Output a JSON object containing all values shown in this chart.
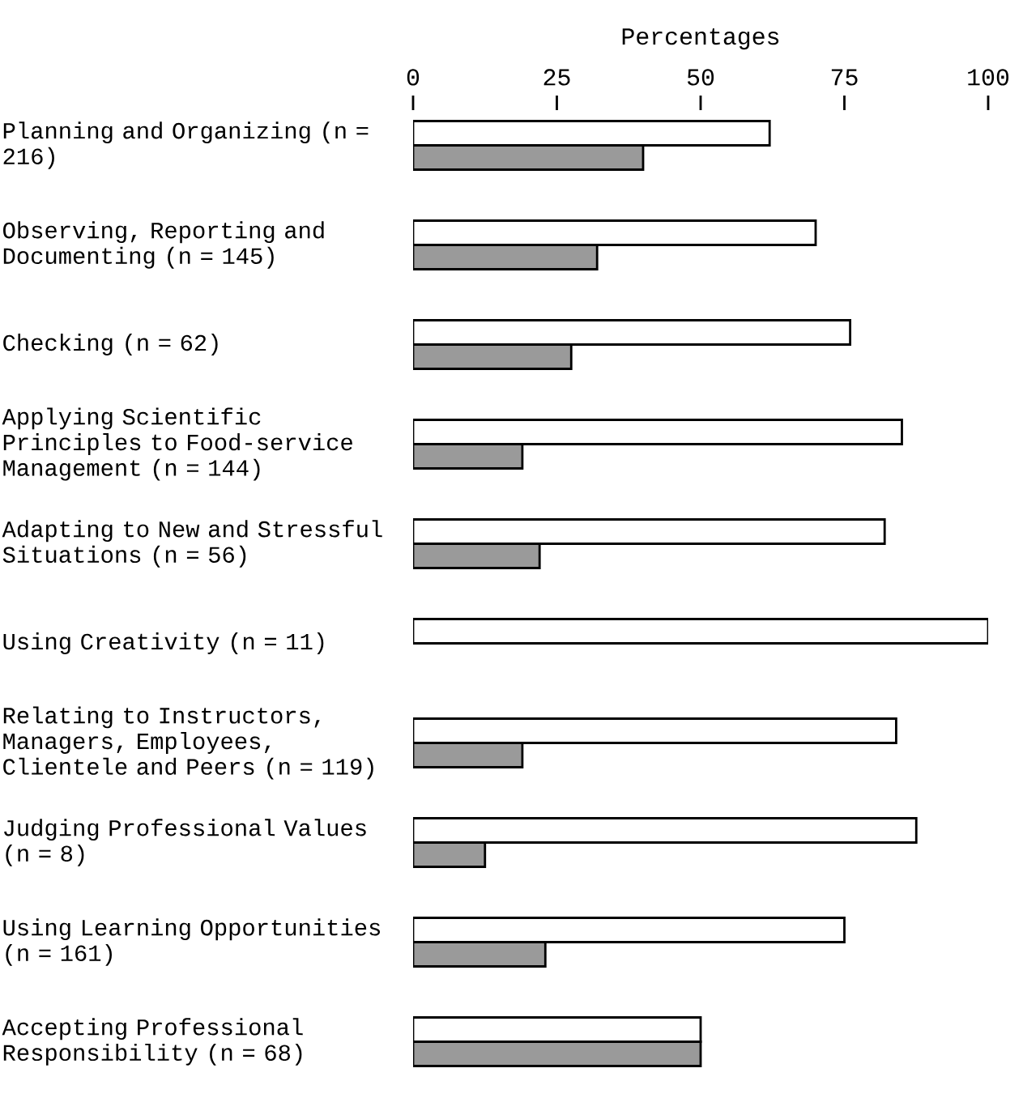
{
  "chart_data": {
    "type": "bar",
    "orientation": "horizontal",
    "xlabel": "Percentages",
    "categories": [
      "Planning and Organizing (n = 216)",
      "Observing, Reporting and Documenting (n = 145)",
      "Checking (n = 62)",
      "Applying Scientific Principles to Food-service Management (n = 144)",
      "Adapting to New and Stressful Situations (n = 56)",
      "Using Creativity (n = 11)",
      "Relating to Instructors, Managers, Employees, Clientele and Peers (n = 119)",
      "Judging Professional Values (n = 8)",
      "Using Learning Opportunities (n = 161)",
      "Accepting Professional Responsibility (n = 68)"
    ],
    "series": [
      {
        "color": "#ffffff",
        "values": [
          62,
          70,
          76,
          85,
          82,
          100,
          84,
          87.5,
          75,
          50
        ]
      },
      {
        "color": "#9a9a9a",
        "values": [
          40,
          32,
          27.5,
          19,
          22,
          null,
          19,
          12.5,
          23,
          50
        ]
      }
    ],
    "xlim": [
      0,
      100
    ],
    "xticks": [
      0,
      25,
      50,
      75,
      100
    ],
    "grid": false
  }
}
